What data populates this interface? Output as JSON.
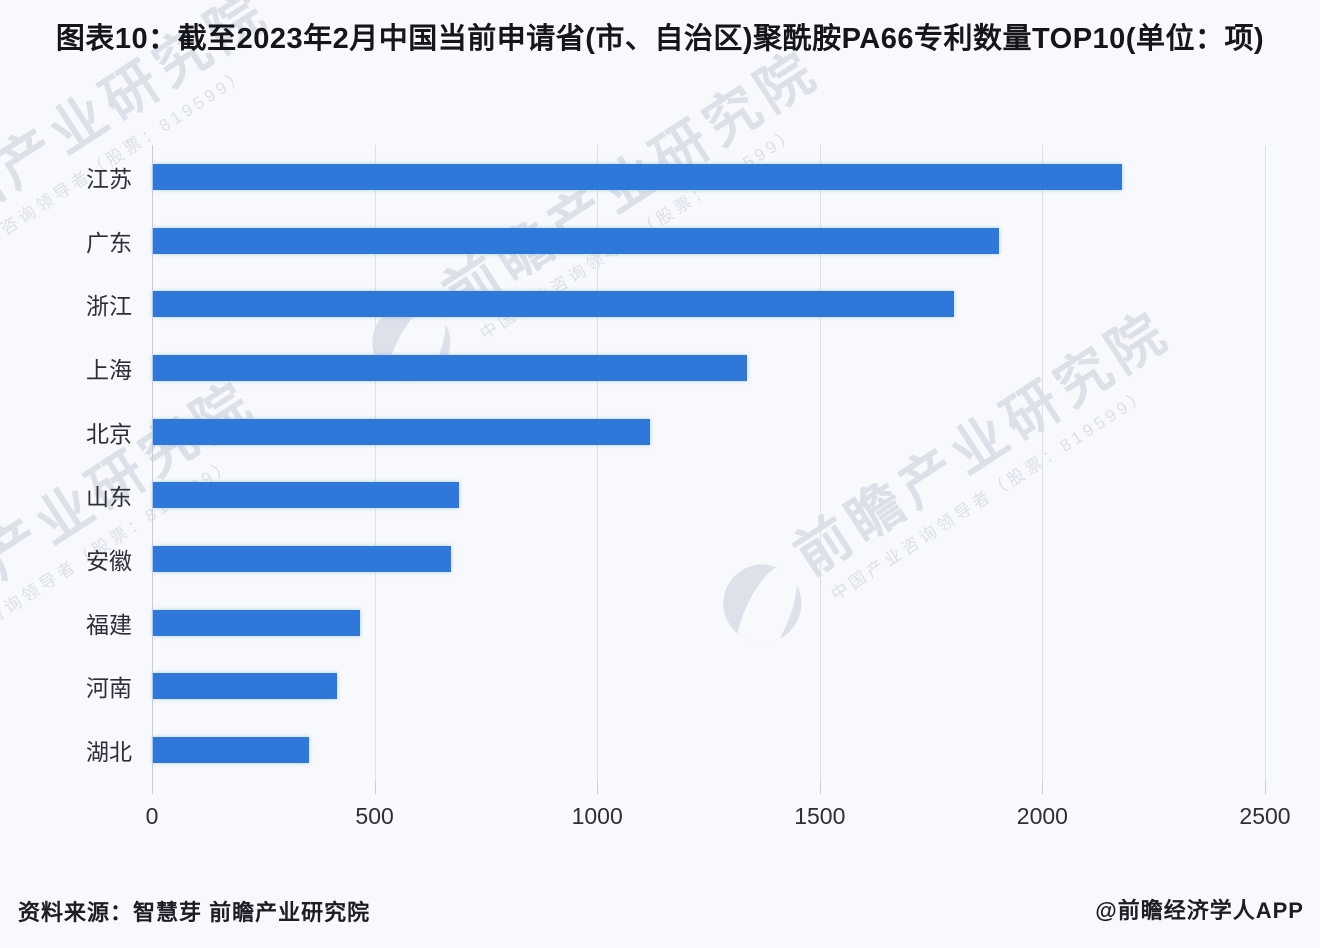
{
  "title": "图表10：截至2023年2月中国当前申请省(市、自治区)聚酰胺PA66专利数量TOP10(单位：项)",
  "chart_data": {
    "type": "bar",
    "orientation": "horizontal",
    "title": "截至2023年2月中国当前申请省(市、自治区)聚酰胺PA66专利数量TOP10",
    "unit": "项",
    "categories": [
      "江苏",
      "广东",
      "浙江",
      "上海",
      "北京",
      "山东",
      "安徽",
      "福建",
      "河南",
      "湖北"
    ],
    "values": [
      2176,
      1900,
      1800,
      1335,
      1117,
      688,
      670,
      465,
      413,
      351
    ],
    "xlabel": "",
    "ylabel": "",
    "xlim": [
      0,
      2500
    ],
    "xticks": [
      0,
      500,
      1000,
      1500,
      2000,
      2500
    ],
    "grid": true,
    "legend": false,
    "bar_color": "#2d78d8"
  },
  "footer": {
    "source": "资料来源：智慧芽 前瞻产业研究院",
    "credit": "@前瞻经济学人APP"
  },
  "watermark": {
    "logo": "qianzhan-swoosh-icon",
    "text": "前瞻产业研究院",
    "subtext": "中国产业咨询领导者（股票：819599）"
  },
  "colors": {
    "background": "#f7f9fc",
    "bar": "#2d78d8",
    "gridline": "#dbdfe6",
    "text": "#15151b",
    "watermark": "rgba(168,180,199,0.36)"
  }
}
